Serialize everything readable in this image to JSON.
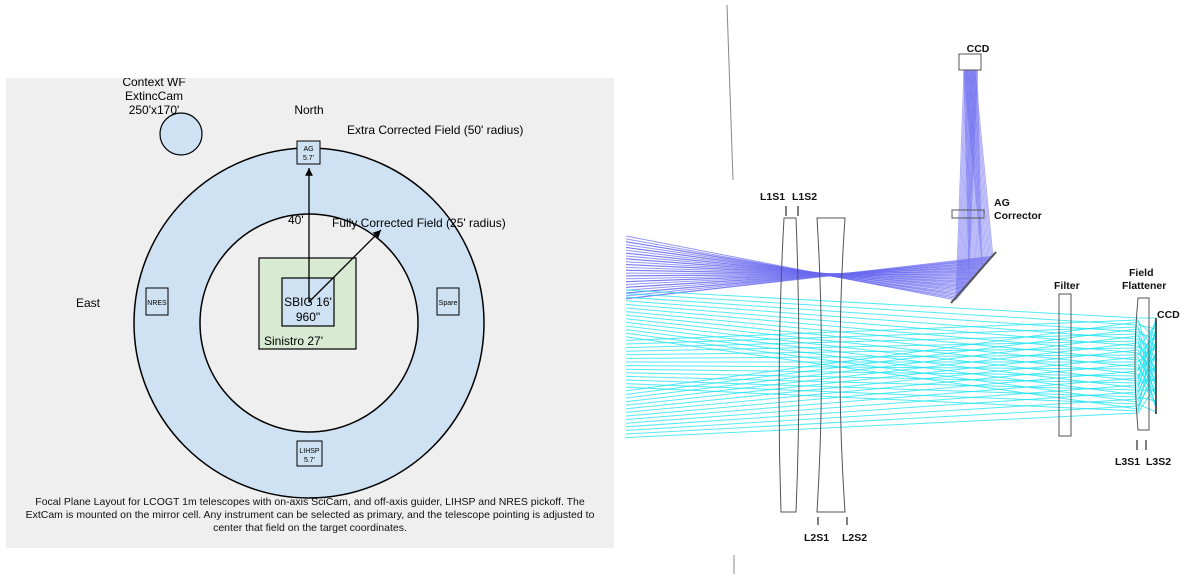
{
  "focal_plane": {
    "context_line1": "Context WF",
    "context_line2": "ExtincCam",
    "context_line3": "250'x170'",
    "north_label": "North",
    "east_label": "East",
    "extra_field_label": "Extra Corrected Field (50' radius)",
    "fully_field_label": "Fully Corrected Field (25' radius)",
    "radius_label": "40'",
    "ag_line1": "AG",
    "ag_line2": "5.7'",
    "nres_label": "NRES",
    "spare_label": "Spare",
    "lihsp_line1": "LIHSP",
    "lihsp_line2": "5.7'",
    "sbig_line1": "SBIG 16'",
    "sbig_line2": "960\"",
    "sinistro_label": "Sinistro 27'",
    "caption": "Focal Plane Layout for LCOGT 1m telescopes with on-axis SciCam, and off-axis guider, LIHSP and NRES pickoff. The ExtCam is mounted on the mirror cell. Any instrument can be selected as primary, and the telescope pointing is adjusted to center that field on the target coordinates.",
    "colors": {
      "panel_bg": "#efefef",
      "ring_fill": "#cfe2f3",
      "sinistro_fill": "#d9ead3"
    }
  },
  "optics": {
    "ccd_top_label": "CCD",
    "ag_corrector_line1": "AG",
    "ag_corrector_line2": "Corrector",
    "l1s1_label": "L1S1",
    "l1s2_label": "L1S2",
    "filter_label": "Filter",
    "field_flattener_line1": "Field",
    "field_flattener_line2": "Flattener",
    "ccd_right_label": "CCD",
    "l3s1_label": "L3S1",
    "l3s2_label": "L3S2",
    "l2s1_label": "L2S1",
    "l2s2_label": "L2S2",
    "colors": {
      "guider_rays": "#6a6af0",
      "science_rays": "#19e3f0"
    }
  }
}
